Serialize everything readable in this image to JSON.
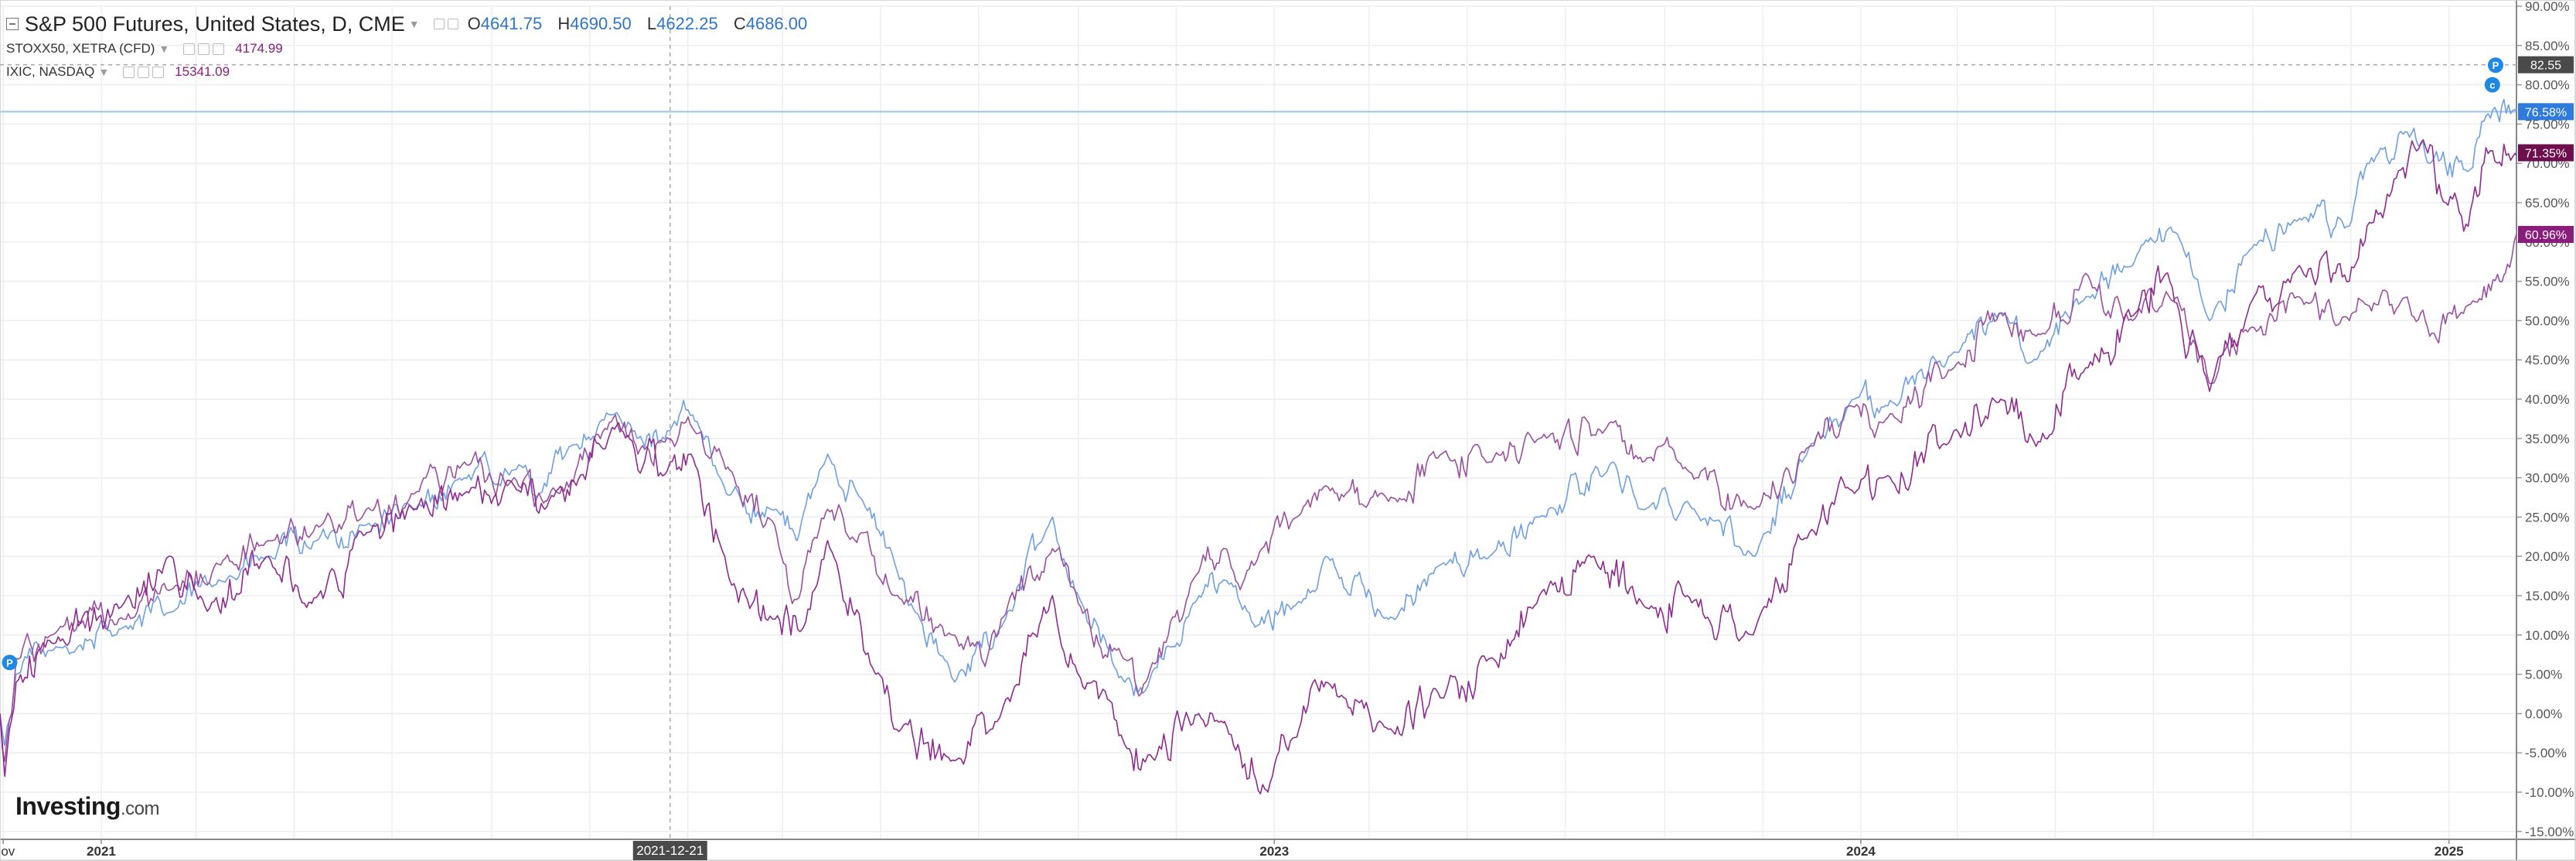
{
  "legend": {
    "main": {
      "title": "S&P 500 Futures, United States, D, CME",
      "open_label": "O",
      "open": "4641.75",
      "high_label": "H",
      "high": "4690.50",
      "low_label": "L",
      "low": "4622.25",
      "close_label": "C",
      "close": "4686.00"
    },
    "compare": [
      {
        "title": "STOXX50, XETRA (CFD)",
        "value": "4174.99"
      },
      {
        "title": "IXIC, NASDAQ",
        "value": "15341.09"
      }
    ]
  },
  "logo": {
    "brand": "Investing",
    "suffix": ".com"
  },
  "colors": {
    "spx": "#6f9fe0",
    "stoxx": "#9a4fa0",
    "ixic": "#8e2b8e",
    "grid": "#eceef2",
    "axis_text": "#555555"
  },
  "icons": [
    "collapse-icon",
    "settings-icon",
    "hide-icon",
    "close-icon",
    "p-marker-icon"
  ],
  "crosshair_label": "2021-12-21",
  "chart_data": {
    "type": "line",
    "title": "S&P 500 Futures, United States, D, CME",
    "y_unit": "%",
    "ylim": [
      -16,
      90
    ],
    "yticks": [
      -15,
      -10,
      -5,
      0,
      5,
      10,
      15,
      20,
      25,
      30,
      35,
      40,
      45,
      50,
      55,
      60,
      65,
      70,
      75,
      80,
      85,
      90
    ],
    "ytick_labels": [
      "-15.00%",
      "-10.00%",
      "-5.00%",
      "0.00%",
      "5.00%",
      "10.00%",
      "15.00%",
      "20.00%",
      "25.00%",
      "30.00%",
      "35.00%",
      "40.00%",
      "45.00%",
      "50.00%",
      "55.00%",
      "60.00%",
      "65.00%",
      "70.00%",
      "75.00%",
      "80.00%",
      "85.00%",
      "90.00%"
    ],
    "x_range": [
      "2020-10-30",
      "2025-02-12"
    ],
    "xticks": [
      {
        "date": "2020-11-01",
        "label": "Nov"
      },
      {
        "date": "2021-01-01",
        "label": "2021"
      },
      {
        "date": "2023-01-01",
        "label": "2023"
      },
      {
        "date": "2024-01-01",
        "label": "2024"
      },
      {
        "date": "2025-01-01",
        "label": "2025"
      }
    ],
    "crosshair": {
      "date": "2021-12-21",
      "value": 82.55,
      "label": "2021-12-21",
      "value_label": "82.55"
    },
    "reference_line": 76.58,
    "grid": true,
    "series": [
      {
        "name": "S&P 500 Futures",
        "color": "#6f9fe0",
        "width": 1.6,
        "noise": 1.6,
        "last_label": "76.58%",
        "label_value": 76.58,
        "label_bg": "#2e7be0",
        "points": [
          [
            "2020-10-30",
            0
          ],
          [
            "2020-11-02",
            -4
          ],
          [
            "2020-11-09",
            5
          ],
          [
            "2020-12-01",
            8
          ],
          [
            "2021-01-15",
            11
          ],
          [
            "2021-02-15",
            13
          ],
          [
            "2021-03-15",
            17
          ],
          [
            "2021-04-15",
            20
          ],
          [
            "2021-05-15",
            22
          ],
          [
            "2021-06-15",
            24
          ],
          [
            "2021-07-15",
            26
          ],
          [
            "2021-08-15",
            30
          ],
          [
            "2021-09-15",
            31
          ],
          [
            "2021-10-01",
            28
          ],
          [
            "2021-10-20",
            34
          ],
          [
            "2021-11-15",
            38
          ],
          [
            "2021-12-01",
            35
          ],
          [
            "2021-12-21",
            36
          ],
          [
            "2022-01-04",
            38
          ],
          [
            "2022-01-25",
            28
          ],
          [
            "2022-02-25",
            26
          ],
          [
            "2022-03-10",
            22
          ],
          [
            "2022-03-29",
            33
          ],
          [
            "2022-04-20",
            27
          ],
          [
            "2022-05-10",
            19
          ],
          [
            "2022-05-20",
            14
          ],
          [
            "2022-06-16",
            4
          ],
          [
            "2022-07-15",
            11
          ],
          [
            "2022-08-16",
            25
          ],
          [
            "2022-09-01",
            15
          ],
          [
            "2022-09-30",
            4
          ],
          [
            "2022-10-13",
            3
          ],
          [
            "2022-11-15",
            15
          ],
          [
            "2022-12-01",
            17
          ],
          [
            "2022-12-20",
            11
          ],
          [
            "2023-01-15",
            14
          ],
          [
            "2023-02-02",
            20
          ],
          [
            "2023-03-13",
            12
          ],
          [
            "2023-04-15",
            19
          ],
          [
            "2023-05-15",
            20
          ],
          [
            "2023-06-15",
            25
          ],
          [
            "2023-07-31",
            32
          ],
          [
            "2023-08-18",
            26
          ],
          [
            "2023-09-15",
            27
          ],
          [
            "2023-10-27",
            20
          ],
          [
            "2023-11-30",
            34
          ],
          [
            "2023-12-28",
            40
          ],
          [
            "2024-01-15",
            39
          ],
          [
            "2024-02-28",
            46
          ],
          [
            "2024-03-28",
            51
          ],
          [
            "2024-04-19",
            45
          ],
          [
            "2024-05-20",
            53
          ],
          [
            "2024-06-18",
            57
          ],
          [
            "2024-07-16",
            61
          ],
          [
            "2024-08-05",
            50
          ],
          [
            "2024-08-30",
            59
          ],
          [
            "2024-09-30",
            63
          ],
          [
            "2024-10-31",
            62
          ],
          [
            "2024-11-11",
            70
          ],
          [
            "2024-12-06",
            74
          ],
          [
            "2024-12-20",
            70
          ],
          [
            "2025-01-13",
            69
          ],
          [
            "2025-01-24",
            76
          ],
          [
            "2025-02-12",
            77
          ]
        ]
      },
      {
        "name": "STOXX50, XETRA (CFD)",
        "color": "#9a4fa0",
        "width": 1.6,
        "noise": 1.8,
        "last_label": "60.96%",
        "label_value": 60.96,
        "label_bg": "#8a1c7c",
        "points": [
          [
            "2020-10-30",
            0
          ],
          [
            "2020-11-02",
            -6
          ],
          [
            "2020-11-09",
            7
          ],
          [
            "2020-12-01",
            10
          ],
          [
            "2021-01-15",
            12
          ],
          [
            "2021-02-15",
            16
          ],
          [
            "2021-03-15",
            19
          ],
          [
            "2021-04-15",
            22
          ],
          [
            "2021-05-15",
            24
          ],
          [
            "2021-06-15",
            26
          ],
          [
            "2021-07-15",
            28
          ],
          [
            "2021-08-15",
            32
          ],
          [
            "2021-09-15",
            30
          ],
          [
            "2021-10-05",
            27
          ],
          [
            "2021-11-17",
            38
          ],
          [
            "2021-12-01",
            33
          ],
          [
            "2021-12-21",
            35
          ],
          [
            "2022-01-05",
            36
          ],
          [
            "2022-01-27",
            31
          ],
          [
            "2022-02-24",
            24
          ],
          [
            "2022-03-07",
            14
          ],
          [
            "2022-03-29",
            26
          ],
          [
            "2022-04-20",
            23
          ],
          [
            "2022-05-10",
            15
          ],
          [
            "2022-06-16",
            10
          ],
          [
            "2022-07-05",
            6
          ],
          [
            "2022-07-15",
            12
          ],
          [
            "2022-08-16",
            21
          ],
          [
            "2022-09-01",
            14
          ],
          [
            "2022-09-29",
            7
          ],
          [
            "2022-10-13",
            4
          ],
          [
            "2022-11-15",
            18
          ],
          [
            "2022-12-01",
            21
          ],
          [
            "2022-12-20",
            19
          ],
          [
            "2023-01-15",
            25
          ],
          [
            "2023-02-02",
            29
          ],
          [
            "2023-03-13",
            27
          ],
          [
            "2023-04-15",
            33
          ],
          [
            "2023-05-15",
            32
          ],
          [
            "2023-06-15",
            35
          ],
          [
            "2023-07-31",
            37
          ],
          [
            "2023-08-18",
            32
          ],
          [
            "2023-09-15",
            31
          ],
          [
            "2023-10-27",
            26
          ],
          [
            "2023-11-30",
            34
          ],
          [
            "2023-12-28",
            39
          ],
          [
            "2024-01-15",
            37
          ],
          [
            "2024-02-28",
            44
          ],
          [
            "2024-03-28",
            51
          ],
          [
            "2024-04-19",
            48
          ],
          [
            "2024-05-20",
            56
          ],
          [
            "2024-06-18",
            50
          ],
          [
            "2024-07-16",
            53
          ],
          [
            "2024-08-05",
            42
          ],
          [
            "2024-08-30",
            49
          ],
          [
            "2024-09-30",
            53
          ],
          [
            "2024-10-31",
            50
          ],
          [
            "2024-11-11",
            52
          ],
          [
            "2024-12-06",
            53
          ],
          [
            "2024-12-20",
            48
          ],
          [
            "2025-01-13",
            52
          ],
          [
            "2025-02-05",
            56
          ],
          [
            "2025-02-12",
            61
          ]
        ]
      },
      {
        "name": "IXIC, NASDAQ",
        "color": "#8e2b8e",
        "width": 1.6,
        "noise": 2.2,
        "last_label": "71.35%",
        "label_value": 71.35,
        "label_bg": "#6d0f4e",
        "points": [
          [
            "2020-10-30",
            0
          ],
          [
            "2020-11-02",
            -8
          ],
          [
            "2020-11-09",
            4
          ],
          [
            "2020-12-01",
            9
          ],
          [
            "2021-01-15",
            14
          ],
          [
            "2021-02-12",
            20
          ],
          [
            "2021-03-08",
            13
          ],
          [
            "2021-04-15",
            20
          ],
          [
            "2021-05-12",
            14
          ],
          [
            "2021-06-15",
            23
          ],
          [
            "2021-07-15",
            26
          ],
          [
            "2021-08-15",
            28
          ],
          [
            "2021-09-15",
            29
          ],
          [
            "2021-10-04",
            26
          ],
          [
            "2021-11-19",
            37
          ],
          [
            "2021-12-01",
            31
          ],
          [
            "2021-12-21",
            32
          ],
          [
            "2022-01-03",
            33
          ],
          [
            "2022-01-27",
            17
          ],
          [
            "2022-02-23",
            12
          ],
          [
            "2022-03-14",
            11
          ],
          [
            "2022-03-29",
            22
          ],
          [
            "2022-04-28",
            5
          ],
          [
            "2022-05-11",
            -2
          ],
          [
            "2022-06-16",
            -6
          ],
          [
            "2022-07-15",
            0
          ],
          [
            "2022-08-16",
            15
          ],
          [
            "2022-09-01",
            5
          ],
          [
            "2022-09-30",
            -4
          ],
          [
            "2022-10-13",
            -6
          ],
          [
            "2022-11-15",
            0
          ],
          [
            "2022-12-01",
            -1
          ],
          [
            "2022-12-28",
            -10
          ],
          [
            "2023-01-15",
            -3
          ],
          [
            "2023-02-02",
            4
          ],
          [
            "2023-03-13",
            -2
          ],
          [
            "2023-04-15",
            2
          ],
          [
            "2023-05-15",
            7
          ],
          [
            "2023-06-15",
            15
          ],
          [
            "2023-07-19",
            20
          ],
          [
            "2023-08-18",
            14
          ],
          [
            "2023-09-15",
            15
          ],
          [
            "2023-10-26",
            10
          ],
          [
            "2023-11-30",
            23
          ],
          [
            "2023-12-28",
            28
          ],
          [
            "2024-01-15",
            30
          ],
          [
            "2024-02-28",
            36
          ],
          [
            "2024-03-28",
            40
          ],
          [
            "2024-04-19",
            34
          ],
          [
            "2024-05-20",
            44
          ],
          [
            "2024-06-20",
            51
          ],
          [
            "2024-07-10",
            56
          ],
          [
            "2024-08-05",
            41
          ],
          [
            "2024-08-30",
            52
          ],
          [
            "2024-09-30",
            57
          ],
          [
            "2024-10-31",
            55
          ],
          [
            "2024-11-11",
            62
          ],
          [
            "2024-12-16",
            73
          ],
          [
            "2024-12-30",
            65
          ],
          [
            "2025-01-13",
            62
          ],
          [
            "2025-01-24",
            72
          ],
          [
            "2025-02-12",
            71
          ]
        ]
      }
    ],
    "markers": [
      {
        "date": "2020-11-05",
        "value": 6.5,
        "label": "P",
        "color": "#1e88e5"
      },
      {
        "date": "2025-01-30",
        "value": 82.5,
        "label": "P",
        "color": "#1e88e5"
      },
      {
        "date": "2025-01-28",
        "value": 80,
        "label": "c",
        "color": "#1e88e5"
      }
    ]
  }
}
